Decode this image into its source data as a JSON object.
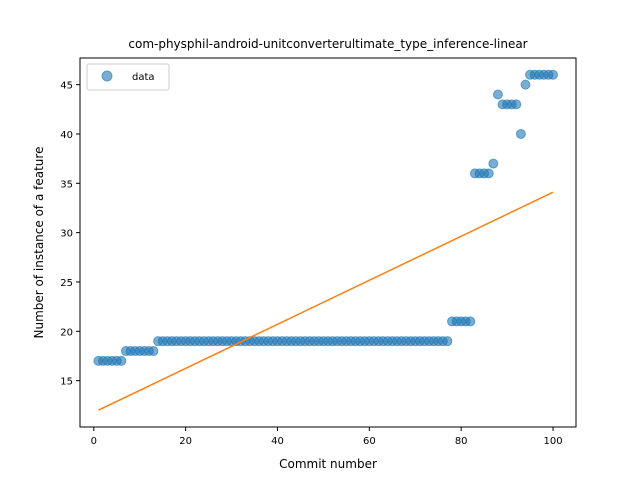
{
  "chart_data": {
    "type": "scatter",
    "title": "com-physphil-android-unitconverterultimate_type_inference-linear",
    "xlabel": "Commit number",
    "ylabel": "Number of instance of a feature",
    "xlim": [
      -3,
      105
    ],
    "ylim": [
      10.3,
      47.7
    ],
    "xticks": [
      0,
      20,
      40,
      60,
      80,
      100
    ],
    "yticks": [
      15,
      20,
      25,
      30,
      35,
      40,
      45
    ],
    "legend": {
      "placement": "top-left",
      "entries": [
        "data"
      ]
    },
    "colors": {
      "points": "#1f77b4",
      "fit": "#ff7f0e"
    },
    "series": [
      {
        "name": "data",
        "kind": "scatter",
        "x": [
          1,
          2,
          3,
          4,
          5,
          6,
          7,
          8,
          9,
          10,
          11,
          12,
          13,
          14,
          15,
          16,
          17,
          18,
          19,
          20,
          21,
          22,
          23,
          24,
          25,
          26,
          27,
          28,
          29,
          30,
          31,
          32,
          33,
          34,
          35,
          36,
          37,
          38,
          39,
          40,
          41,
          42,
          43,
          44,
          45,
          46,
          47,
          48,
          49,
          50,
          51,
          52,
          53,
          54,
          55,
          56,
          57,
          58,
          59,
          60,
          61,
          62,
          63,
          64,
          65,
          66,
          67,
          68,
          69,
          70,
          71,
          72,
          73,
          74,
          75,
          76,
          77,
          78,
          79,
          80,
          81,
          82,
          83,
          84,
          85,
          86,
          87,
          88,
          89,
          90,
          91,
          92,
          93,
          94,
          95,
          96,
          97,
          98,
          99,
          100
        ],
        "y": [
          17,
          17,
          17,
          17,
          17,
          17,
          18,
          18,
          18,
          18,
          18,
          18,
          18,
          19,
          19,
          19,
          19,
          19,
          19,
          19,
          19,
          19,
          19,
          19,
          19,
          19,
          19,
          19,
          19,
          19,
          19,
          19,
          19,
          19,
          19,
          19,
          19,
          19,
          19,
          19,
          19,
          19,
          19,
          19,
          19,
          19,
          19,
          19,
          19,
          19,
          19,
          19,
          19,
          19,
          19,
          19,
          19,
          19,
          19,
          19,
          19,
          19,
          19,
          19,
          19,
          19,
          19,
          19,
          19,
          19,
          19,
          19,
          19,
          19,
          19,
          19,
          19,
          21,
          21,
          21,
          21,
          21,
          36,
          36,
          36,
          36,
          37,
          44,
          43,
          43,
          43,
          43,
          40,
          45,
          46,
          46,
          46,
          46,
          46,
          46
        ]
      },
      {
        "kind": "line",
        "x": [
          1,
          100
        ],
        "y": [
          12.0,
          34.1
        ]
      }
    ]
  }
}
